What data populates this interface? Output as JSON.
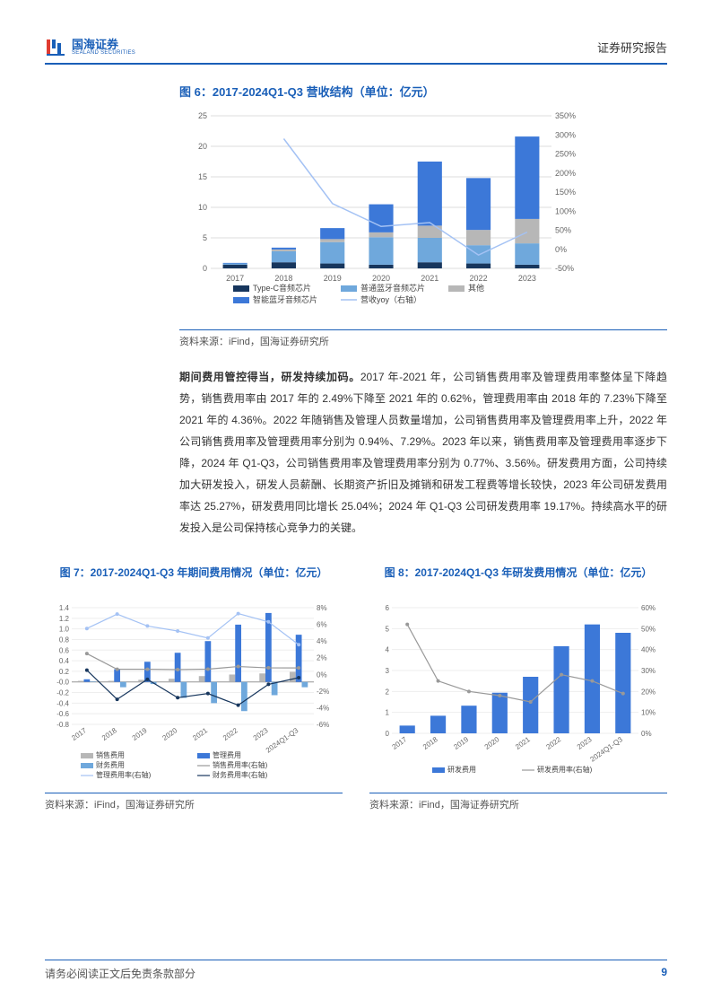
{
  "header": {
    "logo_cn": "国海证券",
    "logo_en": "SEALAND SECURITIES",
    "right": "证券研究报告"
  },
  "figure6": {
    "title": "图 6：2017-2024Q1-Q3 营收结构（单位：亿元）",
    "source": "资料来源：iFind，国海证券研究所",
    "categories": [
      "2017",
      "2018",
      "2019",
      "2020",
      "2021",
      "2022",
      "2023"
    ],
    "series": [
      {
        "name": "Type-C音频芯片",
        "color": "#17365d",
        "values": [
          0.6,
          1.0,
          0.8,
          0.6,
          1.0,
          0.8,
          0.6
        ]
      },
      {
        "name": "普通蓝牙音频芯片",
        "color": "#6fa8dc",
        "values": [
          0.2,
          1.8,
          3.5,
          4.5,
          4.0,
          3.0,
          3.5
        ]
      },
      {
        "name": "其他",
        "color": "#b7b7b7",
        "values": [
          0.0,
          0.3,
          0.5,
          0.8,
          2.0,
          2.5,
          4.0
        ]
      },
      {
        "name": "智能蓝牙音频芯片",
        "color": "#3c78d8",
        "values": [
          0.1,
          0.3,
          1.8,
          4.6,
          10.5,
          8.5,
          13.5
        ]
      }
    ],
    "line": {
      "name": "营收yoy（右轴）",
      "color": "#a4c2f4",
      "values": [
        null,
        290,
        120,
        60,
        70,
        -15,
        45
      ]
    },
    "y_left": {
      "min": 0,
      "max": 25,
      "step": 5
    },
    "y_right": {
      "min": -50,
      "max": 350,
      "step": 50
    }
  },
  "body_text": {
    "bold_lead": "期间费用管控得当，研发持续加码。",
    "rest": "2017 年-2021 年，公司销售费用率及管理费用率整体呈下降趋势，销售费用率由 2017 年的 2.49%下降至 2021 年的 0.62%，管理费用率由 2018 年的 7.23%下降至 2021 年的 4.36%。2022 年随销售及管理人员数量增加，公司销售费用率及管理费用率上升，2022 年公司销售费用率及管理费用率分别为 0.94%、7.29%。2023 年以来，销售费用率及管理费用率逐步下降，2024 年 Q1-Q3，公司销售费用率及管理费用率分别为 0.77%、3.56%。研发费用方面，公司持续加大研发投入，研发人员薪酬、长期资产折旧及摊销和研发工程费等增长较快，2023 年公司研发费用率达 25.27%，研发费用同比增长 25.04%；2024 年 Q1-Q3 公司研发费用率 19.17%。持续高水平的研发投入是公司保持核心竞争力的关键。"
  },
  "figure7": {
    "title": "图 7：2017-2024Q1-Q3 年期间费用情况（单位：亿元）",
    "source": "资料来源：iFind，国海证券研究所",
    "categories": [
      "2017",
      "2018",
      "2019",
      "2020",
      "2021",
      "2022",
      "2023",
      "2024Q1-Q3"
    ],
    "bars": [
      {
        "name": "销售费用",
        "color": "#b7b7b7",
        "values": [
          0.02,
          0.02,
          0.04,
          0.06,
          0.11,
          0.14,
          0.16,
          0.19
        ]
      },
      {
        "name": "管理费用",
        "color": "#3c78d8",
        "values": [
          0.05,
          0.24,
          0.38,
          0.55,
          0.77,
          1.08,
          1.3,
          0.89
        ]
      },
      {
        "name": "财务费用",
        "color": "#6fa8dc",
        "values": [
          0.01,
          -0.1,
          -0.04,
          -0.3,
          -0.4,
          -0.55,
          -0.25,
          -0.1
        ]
      }
    ],
    "lines": [
      {
        "name": "销售费用率(右轴)",
        "color": "#999999",
        "values": [
          2.49,
          0.61,
          0.61,
          0.57,
          0.62,
          0.94,
          0.78,
          0.77
        ]
      },
      {
        "name": "管理费用率(右轴)",
        "color": "#a4c2f4",
        "values": [
          5.5,
          7.23,
          5.8,
          5.2,
          4.36,
          7.29,
          6.3,
          3.56
        ]
      },
      {
        "name": "财务费用率(右轴)",
        "color": "#17365d",
        "values": [
          0.5,
          -3.0,
          -0.6,
          -2.8,
          -2.3,
          -3.7,
          -1.2,
          -0.4
        ]
      }
    ],
    "y_left": {
      "min": -0.8,
      "max": 1.4,
      "step": 0.2
    },
    "y_right": {
      "min": -6,
      "max": 8,
      "step": 2
    }
  },
  "figure8": {
    "title": "图 8：2017-2024Q1-Q3 年研发费用情况（单位：亿元）",
    "source": "资料来源：iFind，国海证券研究所",
    "categories": [
      "2017",
      "2018",
      "2019",
      "2020",
      "2021",
      "2022",
      "2023",
      "2024Q1-Q3"
    ],
    "bars": [
      {
        "name": "研发费用",
        "color": "#3c78d8",
        "values": [
          0.37,
          0.84,
          1.32,
          1.94,
          2.7,
          4.16,
          5.2,
          4.8
        ]
      }
    ],
    "lines": [
      {
        "name": "研发费用率(右轴)",
        "color": "#999999",
        "values": [
          52,
          25,
          20,
          18,
          15,
          28,
          25,
          19
        ]
      }
    ],
    "y_left": {
      "min": 0,
      "max": 6,
      "step": 1
    },
    "y_right": {
      "min": 0,
      "max": 60,
      "step": 10
    }
  },
  "footer": {
    "left": "请务必阅读正文后免责条款部分",
    "page": "9"
  }
}
